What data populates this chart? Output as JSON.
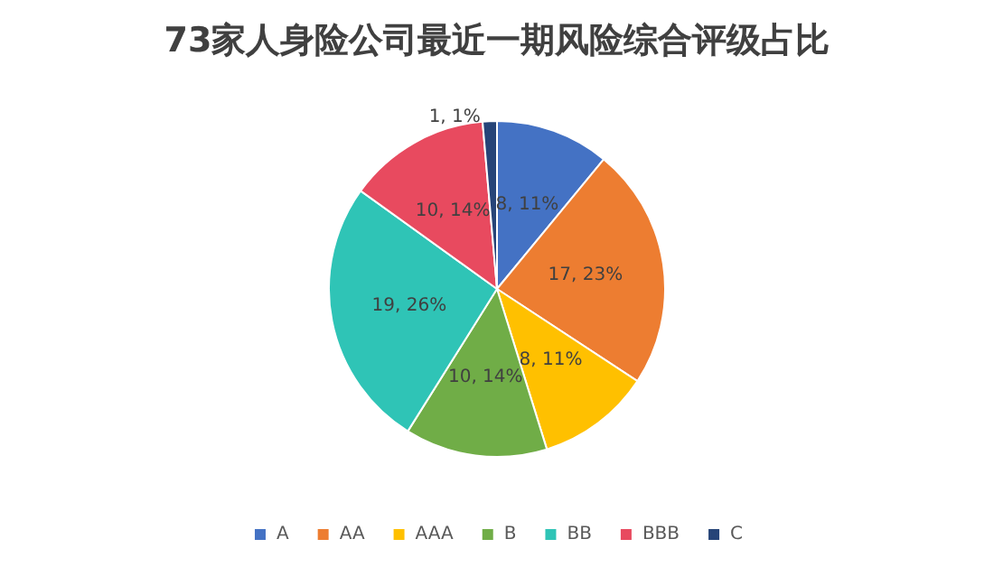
{
  "chart_data": {
    "type": "pie",
    "title": "73家人身险公司最近一期风险综合评级占比",
    "categories": [
      "A",
      "AA",
      "AAA",
      "B",
      "BB",
      "BBB",
      "C"
    ],
    "values": [
      8,
      17,
      8,
      10,
      19,
      10,
      1
    ],
    "colors": [
      "#4472c4",
      "#ed7d31",
      "#ffc000",
      "#70ad47",
      "#2fc4b6",
      "#e84a5f",
      "#264478"
    ],
    "value_labels": [
      "8, 11%",
      "17, 23%",
      "8, 11%",
      "10, 14%",
      "19, 26%",
      "10, 14%",
      "1, 1%"
    ],
    "legend": "bottom"
  }
}
